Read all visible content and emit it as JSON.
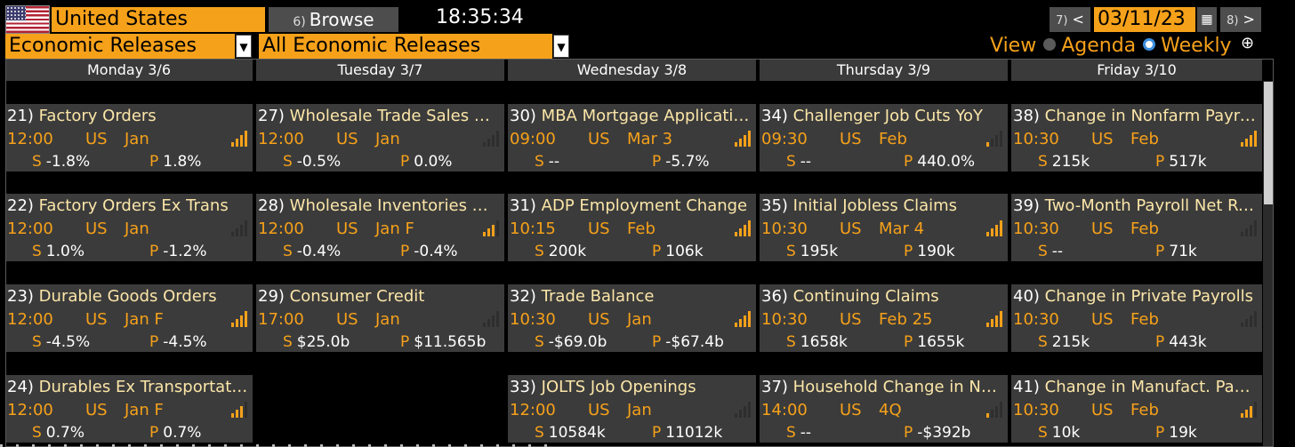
{
  "header": {
    "flag": "us-flag-icon",
    "country": "United States",
    "browse_num": "6)",
    "browse_label": "Browse",
    "clock": "18:35:34",
    "prev_num": "7)",
    "prev_glyph": "<",
    "date": "03/11/23",
    "calendar_icon": "calendar-icon",
    "next_num": "8)",
    "next_glyph": ">"
  },
  "filters": {
    "release_type": "Economic Releases",
    "release_scope": "All Economic Releases"
  },
  "view": {
    "label": "View",
    "agenda": "Agenda",
    "weekly": "Weekly",
    "selected": "Weekly"
  },
  "colors": {
    "accent": "#f6a11a",
    "card_bg": "#3b3b3b",
    "title_text": "#fbe6a8",
    "radio_selected": "#3d8fe0"
  },
  "days": [
    "Monday 3/6",
    "Tuesday 3/7",
    "Wednesday 3/8",
    "Thursday 3/9",
    "Friday 3/10"
  ],
  "columns": [
    [
      {
        "num": "21)",
        "name": "Factory Orders",
        "time": "12:00",
        "country": "US",
        "period": "Jan",
        "survey_label": "S",
        "survey": "-1.8%",
        "prior_label": "P",
        "prior": "1.8%",
        "relevance": 4
      },
      {
        "num": "22)",
        "name": "Factory Orders Ex Trans",
        "time": "12:00",
        "country": "US",
        "period": "Jan",
        "survey_label": "S",
        "survey": "1.0%",
        "prior_label": "P",
        "prior": "-1.2%",
        "relevance": 0
      },
      {
        "num": "23)",
        "name": "Durable Goods Orders",
        "time": "12:00",
        "country": "US",
        "period": "Jan F",
        "survey_label": "S",
        "survey": "-4.5%",
        "prior_label": "P",
        "prior": "-4.5%",
        "relevance": 4
      },
      {
        "num": "24)",
        "name": "Durables Ex Transportation",
        "time": "12:00",
        "country": "US",
        "period": "Jan F",
        "survey_label": "S",
        "survey": "0.7%",
        "prior_label": "P",
        "prior": "0.7%",
        "relevance": 3
      }
    ],
    [
      {
        "num": "27)",
        "name": "Wholesale Trade Sales MoM",
        "time": "12:00",
        "country": "US",
        "period": "Jan",
        "survey_label": "S",
        "survey": "-0.5%",
        "prior_label": "P",
        "prior": "0.0%",
        "relevance": 0
      },
      {
        "num": "28)",
        "name": "Wholesale Inventories MoM",
        "time": "12:00",
        "country": "US",
        "period": "Jan F",
        "survey_label": "S",
        "survey": "-0.4%",
        "prior_label": "P",
        "prior": "-0.4%",
        "relevance": 3
      },
      {
        "num": "29)",
        "name": "Consumer Credit",
        "time": "17:00",
        "country": "US",
        "period": "Jan",
        "survey_label": "S",
        "survey": "$25.0b",
        "prior_label": "P",
        "prior": "$11.565b",
        "relevance": 0
      }
    ],
    [
      {
        "num": "30)",
        "name": "MBA Mortgage Applications",
        "time": "09:00",
        "country": "US",
        "period": "Mar 3",
        "survey_label": "S",
        "survey": "--",
        "prior_label": "P",
        "prior": "-5.7%",
        "relevance": 4
      },
      {
        "num": "31)",
        "name": "ADP Employment Change",
        "time": "10:15",
        "country": "US",
        "period": "Feb",
        "survey_label": "S",
        "survey": "200k",
        "prior_label": "P",
        "prior": "106k",
        "relevance": 4
      },
      {
        "num": "32)",
        "name": "Trade Balance",
        "time": "10:30",
        "country": "US",
        "period": "Jan",
        "survey_label": "S",
        "survey": "-$69.0b",
        "prior_label": "P",
        "prior": "-$67.4b",
        "relevance": 4
      },
      {
        "num": "33)",
        "name": "JOLTS Job Openings",
        "time": "12:00",
        "country": "US",
        "period": "Jan",
        "survey_label": "S",
        "survey": "10584k",
        "prior_label": "P",
        "prior": "11012k",
        "relevance": 0
      }
    ],
    [
      {
        "num": "34)",
        "name": "Challenger Job Cuts YoY",
        "time": "09:30",
        "country": "US",
        "period": "Feb",
        "survey_label": "S",
        "survey": "--",
        "prior_label": "P",
        "prior": "440.0%",
        "relevance": 1
      },
      {
        "num": "35)",
        "name": "Initial Jobless Claims",
        "time": "10:30",
        "country": "US",
        "period": "Mar 4",
        "survey_label": "S",
        "survey": "195k",
        "prior_label": "P",
        "prior": "190k",
        "relevance": 4
      },
      {
        "num": "36)",
        "name": "Continuing Claims",
        "time": "10:30",
        "country": "US",
        "period": "Feb 25",
        "survey_label": "S",
        "survey": "1658k",
        "prior_label": "P",
        "prior": "1655k",
        "relevance": 4
      },
      {
        "num": "37)",
        "name": "Household Change in Net Worth",
        "time": "14:00",
        "country": "US",
        "period": "4Q",
        "survey_label": "S",
        "survey": "--",
        "prior_label": "P",
        "prior": "-$392b",
        "relevance": 1
      }
    ],
    [
      {
        "num": "38)",
        "name": "Change in Nonfarm Payrolls",
        "time": "10:30",
        "country": "US",
        "period": "Feb",
        "survey_label": "S",
        "survey": "215k",
        "prior_label": "P",
        "prior": "517k",
        "relevance": 4
      },
      {
        "num": "39)",
        "name": "Two-Month Payroll Net Revision",
        "time": "10:30",
        "country": "US",
        "period": "Feb",
        "survey_label": "S",
        "survey": "--",
        "prior_label": "P",
        "prior": "71k",
        "relevance": 0
      },
      {
        "num": "40)",
        "name": "Change in Private Payrolls",
        "time": "10:30",
        "country": "US",
        "period": "Feb",
        "survey_label": "S",
        "survey": "215k",
        "prior_label": "P",
        "prior": "443k",
        "relevance": 0
      },
      {
        "num": "41)",
        "name": "Change in Manufact. Payrolls",
        "time": "10:30",
        "country": "US",
        "period": "Feb",
        "survey_label": "S",
        "survey": "10k",
        "prior_label": "P",
        "prior": "19k",
        "relevance": 3
      }
    ]
  ]
}
